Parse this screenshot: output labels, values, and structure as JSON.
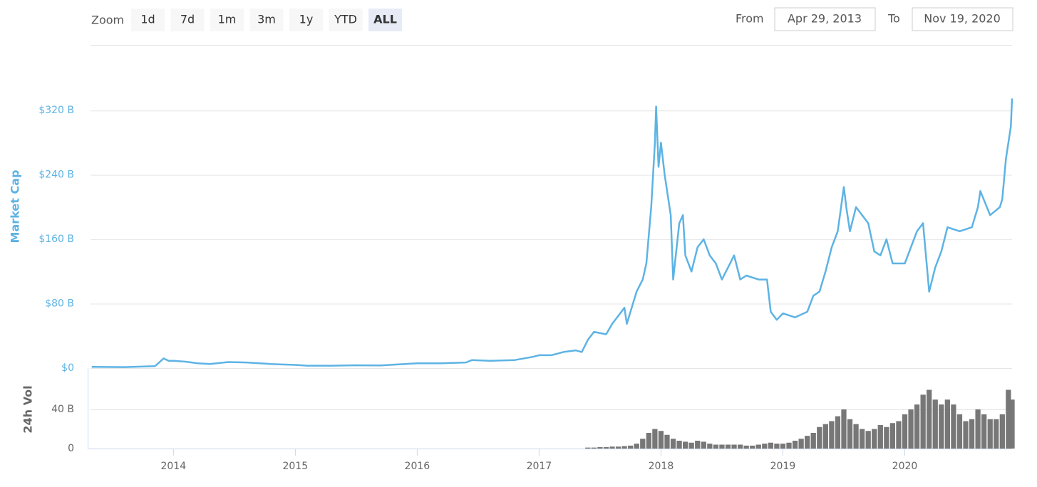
{
  "controls": {
    "zoom_label": "Zoom",
    "buttons": [
      "1d",
      "7d",
      "1m",
      "3m",
      "1y",
      "YTD",
      "ALL"
    ],
    "active_button": 6,
    "from_label": "From",
    "from": "Apr 29, 2013",
    "to_label": "To",
    "to": "Nov 19, 2020"
  },
  "chart_data": [
    {
      "type": "line",
      "y_label": "Market Cap",
      "color": "#5db3e4",
      "grid": true,
      "xlim": [
        2013.32,
        2020.88
      ],
      "ylim": [
        0,
        360
      ],
      "yticks": [
        {
          "value": 0,
          "label": "$0"
        },
        {
          "value": 80,
          "label": "$80 B"
        },
        {
          "value": 160,
          "label": "$160 B"
        },
        {
          "value": 240,
          "label": "$240 B"
        },
        {
          "value": 320,
          "label": "$320 B"
        }
      ],
      "x": [
        2013.33,
        2013.6,
        2013.85,
        2013.92,
        2013.96,
        2014.0,
        2014.1,
        2014.2,
        2014.3,
        2014.45,
        2014.6,
        2014.8,
        2015.0,
        2015.1,
        2015.3,
        2015.5,
        2015.7,
        2015.9,
        2016.0,
        2016.2,
        2016.4,
        2016.45,
        2016.6,
        2016.8,
        2016.95,
        2017.0,
        2017.1,
        2017.2,
        2017.3,
        2017.35,
        2017.4,
        2017.45,
        2017.55,
        2017.6,
        2017.65,
        2017.7,
        2017.72,
        2017.8,
        2017.85,
        2017.88,
        2017.92,
        2017.95,
        2017.96,
        2017.98,
        2018.0,
        2018.03,
        2018.08,
        2018.1,
        2018.15,
        2018.18,
        2018.2,
        2018.25,
        2018.3,
        2018.35,
        2018.4,
        2018.45,
        2018.5,
        2018.55,
        2018.6,
        2018.65,
        2018.7,
        2018.8,
        2018.87,
        2018.9,
        2018.95,
        2019.0,
        2019.1,
        2019.2,
        2019.25,
        2019.3,
        2019.35,
        2019.4,
        2019.45,
        2019.5,
        2019.52,
        2019.55,
        2019.6,
        2019.7,
        2019.75,
        2019.8,
        2019.85,
        2019.9,
        2020.0,
        2020.1,
        2020.15,
        2020.2,
        2020.25,
        2020.3,
        2020.35,
        2020.45,
        2020.55,
        2020.6,
        2020.62,
        2020.7,
        2020.78,
        2020.8,
        2020.83,
        2020.87,
        2020.88
      ],
      "values": [
        1.5,
        1.2,
        2.5,
        12,
        9,
        9,
        8,
        6,
        5,
        7.5,
        7,
        5,
        4,
        3,
        3,
        3.5,
        3.3,
        5,
        6,
        6,
        7,
        10,
        9,
        10,
        14,
        16,
        16,
        20,
        22,
        20,
        35,
        45,
        42,
        55,
        65,
        75,
        55,
        95,
        110,
        130,
        200,
        280,
        325,
        250,
        280,
        240,
        190,
        110,
        180,
        190,
        140,
        120,
        150,
        160,
        140,
        130,
        110,
        125,
        140,
        110,
        115,
        110,
        110,
        70,
        60,
        68,
        63,
        70,
        90,
        95,
        120,
        150,
        170,
        225,
        200,
        170,
        200,
        180,
        145,
        140,
        160,
        130,
        130,
        170,
        180,
        95,
        125,
        145,
        175,
        170,
        175,
        200,
        220,
        190,
        200,
        210,
        260,
        300,
        335
      ]
    },
    {
      "type": "bar",
      "y_label": "24h Vol",
      "color": "#777777",
      "grid": true,
      "xlim": [
        2013.32,
        2020.88
      ],
      "ylim": [
        0,
        80
      ],
      "yticks": [
        0,
        {
          "value": 40,
          "label": "40 B"
        }
      ],
      "xticks": [
        2014,
        2015,
        2016,
        2017,
        2018,
        2019,
        2020
      ],
      "x": [
        2017.4,
        2017.45,
        2017.5,
        2017.55,
        2017.6,
        2017.65,
        2017.7,
        2017.75,
        2017.8,
        2017.85,
        2017.9,
        2017.95,
        2018.0,
        2018.05,
        2018.1,
        2018.15,
        2018.2,
        2018.25,
        2018.3,
        2018.35,
        2018.4,
        2018.45,
        2018.5,
        2018.55,
        2018.6,
        2018.65,
        2018.7,
        2018.75,
        2018.8,
        2018.85,
        2018.9,
        2018.95,
        2019.0,
        2019.05,
        2019.1,
        2019.15,
        2019.2,
        2019.25,
        2019.3,
        2019.35,
        2019.4,
        2019.45,
        2019.5,
        2019.55,
        2019.6,
        2019.65,
        2019.7,
        2019.75,
        2019.8,
        2019.85,
        2019.9,
        2019.95,
        2020.0,
        2020.05,
        2020.1,
        2020.15,
        2020.2,
        2020.25,
        2020.3,
        2020.35,
        2020.4,
        2020.45,
        2020.5,
        2020.55,
        2020.6,
        2020.65,
        2020.7,
        2020.75,
        2020.8,
        2020.85,
        2020.88
      ],
      "values": [
        1,
        1,
        1.5,
        1.5,
        2,
        2,
        2.5,
        3,
        5,
        10,
        16,
        20,
        18,
        14,
        10,
        8,
        7,
        6,
        8,
        7,
        5,
        4,
        4,
        4,
        4,
        4,
        3,
        3,
        4,
        5,
        6,
        5,
        5,
        6,
        8,
        10,
        13,
        16,
        22,
        25,
        28,
        33,
        40,
        30,
        25,
        20,
        18,
        20,
        24,
        22,
        26,
        28,
        35,
        40,
        45,
        55,
        60,
        50,
        45,
        50,
        45,
        35,
        28,
        30,
        40,
        35,
        30,
        30,
        35,
        60,
        50
      ]
    }
  ]
}
